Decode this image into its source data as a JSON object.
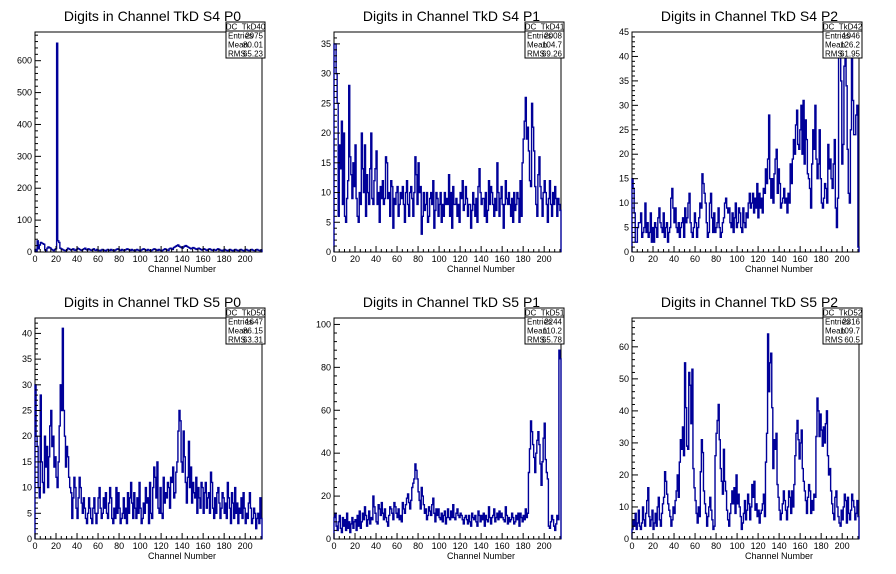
{
  "chart_data": [
    {
      "type": "histogram",
      "title": "Digits in Channel TkD S4 P0",
      "xlabel": "Channel Number",
      "xlim": [
        0,
        216
      ],
      "ylim": [
        0,
        690
      ],
      "xticks": [
        0,
        20,
        40,
        60,
        80,
        100,
        120,
        140,
        160,
        180,
        200
      ],
      "yticks": [
        0,
        100,
        200,
        300,
        400,
        500,
        600
      ],
      "stats": {
        "name": "DC_TkD40",
        "entries": "2975",
        "mean": "80.01",
        "rms": "65.23"
      },
      "values": [
        8,
        2,
        35,
        10,
        22,
        30,
        28,
        26,
        24,
        6,
        4,
        12,
        16,
        14,
        12,
        8,
        6,
        4,
        8,
        10,
        655,
        35,
        30,
        12,
        10,
        8,
        6,
        5,
        4,
        6,
        12,
        10,
        8,
        6,
        8,
        10,
        6,
        5,
        8,
        12,
        10,
        8,
        6,
        5,
        8,
        10,
        12,
        8,
        6,
        10,
        8,
        6,
        5,
        8,
        10,
        6,
        5,
        8,
        6,
        5,
        4,
        6,
        8,
        6,
        5,
        4,
        6,
        8,
        6,
        5,
        8,
        6,
        5,
        4,
        6,
        8,
        10,
        8,
        6,
        5,
        8,
        6,
        5,
        6,
        8,
        10,
        8,
        6,
        5,
        8,
        6,
        5,
        4,
        6,
        8,
        6,
        5,
        4,
        6,
        8,
        10,
        8,
        6,
        5,
        8,
        6,
        5,
        4,
        6,
        8,
        10,
        8,
        6,
        5,
        8,
        6,
        5,
        4,
        6,
        8,
        10,
        8,
        6,
        5,
        10,
        12,
        10,
        8,
        14,
        16,
        18,
        20,
        22,
        18,
        16,
        14,
        12,
        16,
        18,
        20,
        18,
        16,
        14,
        12,
        10,
        12,
        14,
        12,
        10,
        8,
        10,
        12,
        10,
        8,
        6,
        8,
        10,
        8,
        6,
        5,
        8,
        10,
        8,
        6,
        5,
        8,
        6,
        5,
        8,
        10,
        8,
        6,
        5,
        4,
        6,
        8,
        6,
        5,
        4,
        6,
        8,
        6,
        5,
        4,
        6,
        8,
        6,
        5,
        4,
        6,
        8,
        6,
        5,
        4,
        6,
        8,
        6,
        5,
        4,
        6,
        8,
        6,
        5,
        4,
        6,
        8,
        6,
        5,
        4,
        6
      ]
    },
    {
      "type": "histogram",
      "title": "Digits in Channel TkD S4 P1",
      "xlabel": "Channel Number",
      "xlim": [
        0,
        216
      ],
      "ylim": [
        0,
        37
      ],
      "xticks": [
        0,
        20,
        40,
        60,
        80,
        100,
        120,
        140,
        160,
        180,
        200
      ],
      "yticks": [
        0,
        5,
        10,
        15,
        20,
        25,
        30,
        35
      ],
      "stats": {
        "name": "DC_TkD41",
        "entries": "2008",
        "mean": "104.7",
        "rms": "69.26"
      },
      "values": [
        35,
        35,
        30,
        25,
        6,
        18,
        14,
        22,
        8,
        20,
        6,
        5,
        9,
        12,
        28,
        16,
        13,
        9,
        15,
        11,
        18,
        9,
        6,
        5,
        10,
        8,
        20,
        14,
        10,
        18,
        6,
        13,
        10,
        8,
        14,
        20,
        9,
        8,
        12,
        14,
        17,
        8,
        10,
        5,
        11,
        9,
        12,
        8,
        9,
        16,
        15,
        9,
        10,
        6,
        12,
        11,
        4,
        9,
        8,
        10,
        11,
        6,
        8,
        10,
        9,
        11,
        8,
        5,
        10,
        12,
        8,
        6,
        10,
        11,
        9,
        6,
        10,
        16,
        13,
        8,
        15,
        10,
        11,
        3,
        6,
        10,
        7,
        8,
        10,
        5,
        6,
        9,
        10,
        8,
        12,
        4,
        7,
        10,
        9,
        6,
        8,
        10,
        5,
        8,
        6,
        10,
        8,
        9,
        8,
        13,
        6,
        10,
        4,
        11,
        8,
        8,
        9,
        6,
        8,
        5,
        10,
        9,
        12,
        7,
        8,
        11,
        9,
        6,
        8,
        8,
        4,
        7,
        10,
        8,
        6,
        9,
        5,
        11,
        14,
        10,
        8,
        9,
        9,
        6,
        10,
        5,
        7,
        12,
        8,
        11,
        10,
        8,
        6,
        9,
        7,
        15,
        10,
        6,
        9,
        11,
        8,
        4,
        8,
        12,
        9,
        8,
        10,
        8,
        6,
        9,
        5,
        10,
        7,
        8,
        10,
        9,
        5,
        12,
        6,
        15,
        19,
        22,
        26,
        19,
        21,
        17,
        12,
        11,
        25,
        21,
        17,
        11,
        8,
        6,
        13,
        16,
        11,
        9,
        6,
        10,
        12,
        10,
        8,
        5,
        9,
        12,
        8,
        6,
        10,
        8,
        11,
        9,
        6,
        9,
        8,
        7
      ]
    },
    {
      "type": "histogram",
      "title": "Digits in Channel TkD S4 P2",
      "xlabel": "Channel Number",
      "xlim": [
        0,
        216
      ],
      "ylim": [
        0,
        45
      ],
      "xticks": [
        0,
        20,
        40,
        60,
        80,
        100,
        120,
        140,
        160,
        180,
        200
      ],
      "yticks": [
        0,
        5,
        10,
        15,
        20,
        25,
        30,
        35,
        40,
        45
      ],
      "stats": {
        "name": "DC_TkD42",
        "entries": "1946",
        "mean": "126.2",
        "rms": "61.95"
      },
      "values": [
        15,
        13,
        8,
        2,
        2,
        5,
        6,
        6,
        8,
        3,
        4,
        5,
        10,
        4,
        6,
        3,
        4,
        8,
        2,
        5,
        2,
        6,
        5,
        3,
        7,
        9,
        6,
        5,
        4,
        8,
        3,
        5,
        6,
        2,
        4,
        5,
        11,
        13,
        9,
        6,
        9,
        5,
        4,
        6,
        3,
        5,
        6,
        7,
        3,
        9,
        6,
        7,
        10,
        12,
        6,
        4,
        3,
        5,
        8,
        6,
        3,
        5,
        7,
        10,
        9,
        16,
        14,
        12,
        10,
        6,
        3,
        4,
        10,
        12,
        7,
        4,
        8,
        4,
        5,
        6,
        9,
        5,
        3,
        4,
        6,
        7,
        10,
        11,
        9,
        8,
        9,
        6,
        5,
        8,
        4,
        7,
        10,
        5,
        6,
        9,
        8,
        5,
        4,
        9,
        6,
        5,
        8,
        7,
        10,
        12,
        9,
        10,
        12,
        8,
        11,
        9,
        14,
        7,
        12,
        9,
        11,
        8,
        13,
        12,
        17,
        14,
        19,
        28,
        15,
        11,
        15,
        10,
        16,
        19,
        21,
        12,
        17,
        14,
        9,
        10,
        11,
        13,
        10,
        11,
        8,
        12,
        10,
        18,
        14,
        19,
        23,
        20,
        26,
        29,
        22,
        21,
        25,
        30,
        20,
        31,
        18,
        27,
        23,
        16,
        15,
        13,
        9,
        18,
        25,
        21,
        30,
        19,
        15,
        18,
        25,
        15,
        10,
        9,
        11,
        14,
        13,
        10,
        22,
        17,
        19,
        15,
        13,
        18,
        23,
        9,
        5,
        11,
        42,
        41,
        35,
        18,
        22,
        38,
        40,
        34,
        21,
        12,
        10,
        25,
        44,
        31,
        24,
        24,
        28,
        30,
        1
      ]
    },
    {
      "type": "histogram",
      "title": "Digits in Channel TkD S5 P0",
      "xlabel": "Channel Number",
      "xlim": [
        0,
        216
      ],
      "ylim": [
        0,
        43
      ],
      "xticks": [
        0,
        20,
        40,
        60,
        80,
        100,
        120,
        140,
        160,
        180,
        200
      ],
      "yticks": [
        0,
        5,
        10,
        15,
        20,
        25,
        30,
        35,
        40
      ],
      "stats": {
        "name": "DC_TkD50",
        "entries": "1647",
        "mean": "86.15",
        "rms": "63.31"
      },
      "values": [
        30,
        20,
        18,
        10,
        8,
        28,
        15,
        11,
        9,
        20,
        14,
        18,
        10,
        16,
        22,
        25,
        18,
        20,
        14,
        16,
        12,
        10,
        15,
        22,
        30,
        25,
        41,
        25,
        20,
        14,
        18,
        16,
        12,
        10,
        9,
        4,
        8,
        12,
        10,
        6,
        4,
        8,
        12,
        10,
        7,
        5,
        8,
        6,
        4,
        3,
        5,
        8,
        6,
        4,
        3,
        6,
        8,
        5,
        3,
        5,
        8,
        10,
        6,
        4,
        5,
        8,
        6,
        9,
        5,
        4,
        7,
        10,
        8,
        4,
        3,
        6,
        4,
        10,
        5,
        9,
        6,
        3,
        4,
        5,
        8,
        4,
        6,
        3,
        9,
        5,
        8,
        11,
        7,
        4,
        9,
        6,
        4,
        8,
        5,
        11,
        6,
        3,
        4,
        7,
        5,
        10,
        7,
        8,
        3,
        11,
        5,
        4,
        10,
        14,
        12,
        8,
        15,
        6,
        5,
        10,
        5,
        4,
        12,
        7,
        9,
        8,
        11,
        10,
        6,
        12,
        11,
        14,
        8,
        9,
        13,
        15,
        21,
        25,
        23,
        15,
        13,
        21,
        16,
        11,
        7,
        12,
        19,
        10,
        14,
        7,
        11,
        9,
        8,
        12,
        5,
        10,
        8,
        6,
        11,
        10,
        5,
        9,
        11,
        6,
        8,
        9,
        5,
        13,
        11,
        6,
        4,
        8,
        5,
        9,
        10,
        7,
        4,
        6,
        9,
        8,
        5,
        7,
        4,
        11,
        8,
        6,
        3,
        9,
        7,
        4,
        10,
        5,
        7,
        3,
        6,
        5,
        8,
        4,
        9,
        6,
        3,
        5,
        4,
        7,
        9,
        6,
        3,
        4,
        6,
        5,
        2,
        4,
        5,
        3,
        8,
        4
      ]
    },
    {
      "type": "histogram",
      "title": "Digits in Channel TkD S5 P1",
      "xlabel": "Channel Number",
      "xlim": [
        0,
        216
      ],
      "ylim": [
        0,
        103
      ],
      "xticks": [
        0,
        20,
        40,
        60,
        80,
        100,
        120,
        140,
        160,
        180,
        200
      ],
      "yticks": [
        0,
        20,
        40,
        60,
        80,
        100
      ],
      "stats": {
        "name": "DC_TkD51",
        "entries": "2244",
        "mean": "110.2",
        "rms": "65.78"
      },
      "values": [
        10,
        12,
        6,
        4,
        8,
        11,
        5,
        3,
        10,
        6,
        9,
        4,
        12,
        5,
        8,
        3,
        7,
        10,
        5,
        8,
        9,
        4,
        11,
        6,
        13,
        5,
        8,
        12,
        9,
        15,
        11,
        6,
        9,
        13,
        7,
        10,
        9,
        20,
        15,
        12,
        8,
        7,
        16,
        14,
        11,
        17,
        12,
        9,
        14,
        10,
        8,
        6,
        11,
        15,
        14,
        12,
        9,
        17,
        15,
        12,
        10,
        14,
        9,
        11,
        8,
        17,
        14,
        12,
        16,
        19,
        21,
        17,
        14,
        18,
        24,
        26,
        28,
        35,
        32,
        28,
        22,
        18,
        14,
        24,
        20,
        16,
        12,
        14,
        9,
        11,
        15,
        13,
        11,
        16,
        19,
        12,
        8,
        14,
        11,
        14,
        10,
        9,
        12,
        8,
        11,
        13,
        7,
        10,
        14,
        10,
        9,
        13,
        10,
        16,
        10,
        9,
        12,
        14,
        11,
        10,
        12,
        11,
        9,
        7,
        10,
        11,
        9,
        7,
        11,
        8,
        6,
        12,
        10,
        9,
        11,
        8,
        6,
        13,
        11,
        8,
        11,
        9,
        12,
        6,
        11,
        9,
        8,
        15,
        10,
        7,
        10,
        11,
        14,
        8,
        10,
        12,
        9,
        13,
        10,
        12,
        10,
        9,
        8,
        15,
        11,
        7,
        10,
        8,
        9,
        12,
        10,
        7,
        8,
        11,
        9,
        12,
        6,
        12,
        10,
        8,
        11,
        9,
        14,
        10,
        12,
        31,
        42,
        55,
        50,
        44,
        38,
        31,
        40,
        46,
        50,
        44,
        35,
        25,
        36,
        47,
        54,
        37,
        31,
        28,
        6,
        5,
        8,
        11,
        9,
        6,
        4,
        7,
        11,
        9,
        88,
        84
      ]
    },
    {
      "type": "histogram",
      "title": "Digits in Channel TkD S5 P2",
      "xlabel": "Channel Number",
      "xlim": [
        0,
        216
      ],
      "ylim": [
        0,
        69
      ],
      "xticks": [
        0,
        20,
        40,
        60,
        80,
        100,
        120,
        140,
        160,
        180,
        200
      ],
      "yticks": [
        0,
        10,
        20,
        30,
        40,
        50,
        60
      ],
      "stats": {
        "name": "DC_TkD52",
        "entries": "2316",
        "mean": "109.7",
        "rms": "60.5"
      },
      "values": [
        3,
        6,
        4,
        8,
        3,
        5,
        9,
        4,
        3,
        5,
        10,
        6,
        4,
        8,
        12,
        16,
        7,
        4,
        6,
        9,
        3,
        5,
        8,
        4,
        10,
        13,
        6,
        4,
        8,
        11,
        13,
        21,
        18,
        14,
        11,
        9,
        7,
        4,
        6,
        10,
        8,
        12,
        15,
        20,
        13,
        24,
        31,
        28,
        35,
        26,
        55,
        41,
        29,
        28,
        52,
        48,
        36,
        53,
        22,
        16,
        12,
        8,
        5,
        10,
        7,
        21,
        31,
        27,
        15,
        11,
        8,
        4,
        7,
        10,
        13,
        9,
        6,
        3,
        4,
        26,
        33,
        37,
        42,
        31,
        22,
        18,
        14,
        28,
        18,
        15,
        9,
        6,
        4,
        8,
        11,
        15,
        11,
        16,
        8,
        20,
        11,
        14,
        10,
        7,
        3,
        5,
        8,
        12,
        6,
        9,
        14,
        11,
        6,
        10,
        17,
        13,
        18,
        9,
        11,
        7,
        9,
        5,
        8,
        9,
        11,
        14,
        7,
        24,
        33,
        64,
        46,
        55,
        58,
        41,
        22,
        31,
        28,
        33,
        17,
        13,
        9,
        6,
        8,
        11,
        15,
        12,
        9,
        6,
        10,
        15,
        13,
        8,
        15,
        10,
        17,
        26,
        33,
        37,
        31,
        25,
        30,
        34,
        22,
        18,
        15,
        12,
        8,
        13,
        17,
        15,
        8,
        12,
        9,
        14,
        13,
        32,
        44,
        40,
        32,
        39,
        34,
        29,
        35,
        30,
        36,
        40,
        26,
        20,
        22,
        15,
        11,
        8,
        6,
        13,
        15,
        10,
        7,
        5,
        4,
        9,
        6,
        10,
        14,
        12,
        5,
        13,
        8,
        6,
        9,
        14,
        12,
        10,
        6,
        8,
        12,
        7
      ]
    }
  ]
}
